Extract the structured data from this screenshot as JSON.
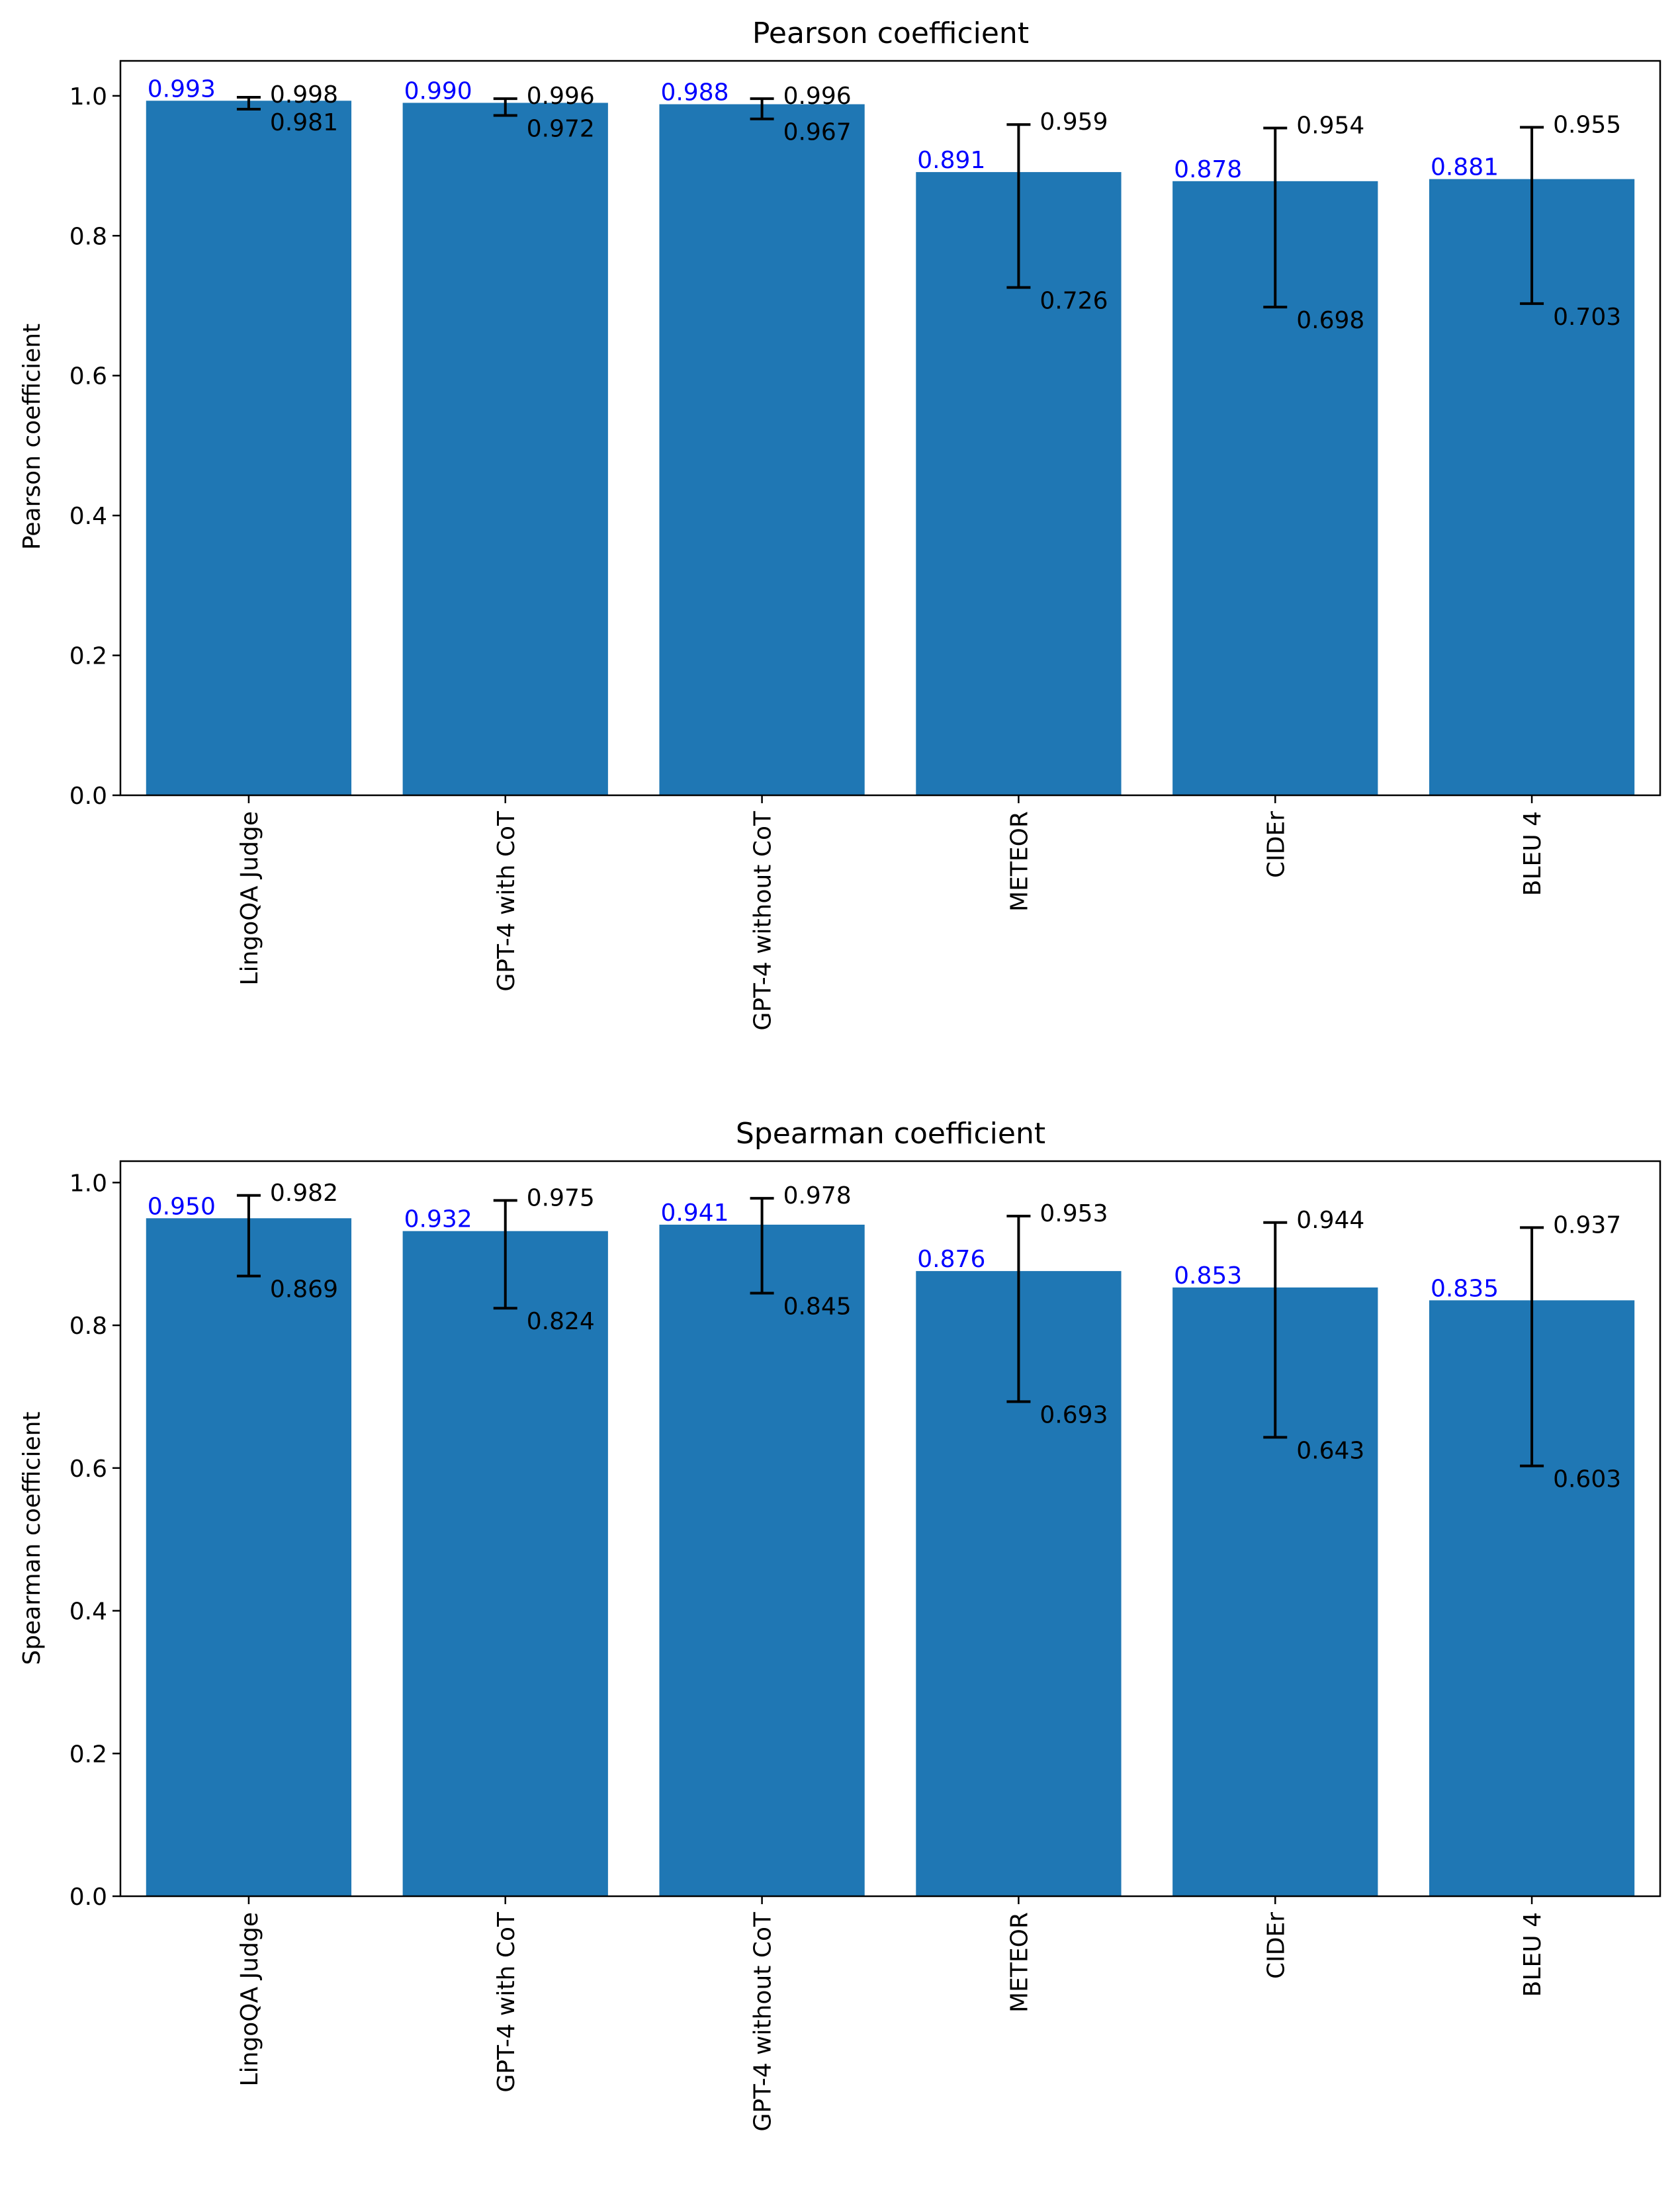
{
  "colors": {
    "bar": "#1f77b4",
    "mean_label": "#0000ff",
    "ci_label": "#000000",
    "axis": "#000000",
    "background": "#ffffff"
  },
  "chart_data": [
    {
      "type": "bar",
      "title": "Pearson coefficient",
      "xlabel": "",
      "ylabel": "Pearson coefficient",
      "ylim": [
        0,
        1.05
      ],
      "yticks": [
        0.0,
        0.2,
        0.4,
        0.6,
        0.8,
        1.0
      ],
      "ytick_labels": [
        "0.0",
        "0.2",
        "0.4",
        "0.6",
        "0.8",
        "1.0"
      ],
      "grid": false,
      "categories": [
        "LingoQA Judge",
        "GPT-4 with CoT",
        "GPT-4 without CoT",
        "METEOR",
        "CIDEr",
        "BLEU 4"
      ],
      "values": [
        0.993,
        0.99,
        0.988,
        0.891,
        0.878,
        0.881
      ],
      "value_labels": [
        "0.993",
        "0.990",
        "0.988",
        "0.891",
        "0.878",
        "0.881"
      ],
      "ci_upper": [
        0.998,
        0.996,
        0.996,
        0.959,
        0.954,
        0.955
      ],
      "ci_upper_labels": [
        "0.998",
        "0.996",
        "0.996",
        "0.959",
        "0.954",
        "0.955"
      ],
      "ci_lower": [
        0.981,
        0.972,
        0.967,
        0.726,
        0.698,
        0.703
      ],
      "ci_lower_labels": [
        "0.981",
        "0.972",
        "0.967",
        "0.726",
        "0.698",
        "0.703"
      ]
    },
    {
      "type": "bar",
      "title": "Spearman coefficient",
      "xlabel": "",
      "ylabel": "Spearman coefficient",
      "ylim": [
        0,
        1.03
      ],
      "yticks": [
        0.0,
        0.2,
        0.4,
        0.6,
        0.8,
        1.0
      ],
      "ytick_labels": [
        "0.0",
        "0.2",
        "0.4",
        "0.6",
        "0.8",
        "1.0"
      ],
      "grid": false,
      "categories": [
        "LingoQA Judge",
        "GPT-4 with CoT",
        "GPT-4 without CoT",
        "METEOR",
        "CIDEr",
        "BLEU 4"
      ],
      "values": [
        0.95,
        0.932,
        0.941,
        0.876,
        0.853,
        0.835
      ],
      "value_labels": [
        "0.950",
        "0.932",
        "0.941",
        "0.876",
        "0.853",
        "0.835"
      ],
      "ci_upper": [
        0.982,
        0.975,
        0.978,
        0.953,
        0.944,
        0.937
      ],
      "ci_upper_labels": [
        "0.982",
        "0.975",
        "0.978",
        "0.953",
        "0.944",
        "0.937"
      ],
      "ci_lower": [
        0.869,
        0.824,
        0.845,
        0.693,
        0.643,
        0.603
      ],
      "ci_lower_labels": [
        "0.869",
        "0.824",
        "0.845",
        "0.693",
        "0.643",
        "0.603"
      ]
    }
  ]
}
